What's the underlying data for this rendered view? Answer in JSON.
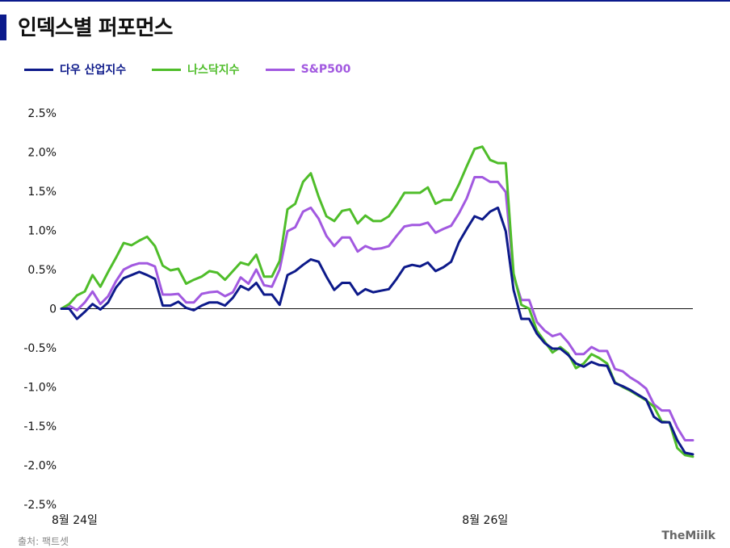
{
  "header": {
    "title": "인덱스별 퍼포먼스"
  },
  "footer": {
    "source": "출처: 팩트셋",
    "brand": "TheMiilk"
  },
  "colors": {
    "accent": "#0b1a8c",
    "dow": "#0d1a8a",
    "nasdaq": "#4fbd2a",
    "sp500": "#a259e0",
    "axis": "#111111"
  },
  "chart_data": {
    "type": "line",
    "title": "인덱스별 퍼포먼스",
    "xlabel": "",
    "ylabel": "",
    "ylim": [
      -2.5,
      2.5
    ],
    "y_ticks": [
      2.5,
      2.0,
      1.5,
      1.0,
      0.5,
      0,
      -0.5,
      -1.0,
      -1.5,
      -2.0,
      -2.5
    ],
    "y_tick_labels": [
      "2.5%",
      "2.0%",
      "1.5%",
      "1.0%",
      "0.5%",
      "0",
      "-0.5%",
      "-1.0%",
      "-1.5%",
      "-2.0%",
      "-2.5%"
    ],
    "x_range": [
      0,
      100
    ],
    "x_ticks": [
      {
        "x": 0,
        "label": "8월 24일"
      },
      {
        "x": 65,
        "label": "8월 26일"
      }
    ],
    "grid": false,
    "legend_position": "top-left",
    "series": [
      {
        "name": "다우 산업지수",
        "color": "#0d1a8a",
        "values": [
          0,
          0,
          -0.13,
          -0.04,
          0.06,
          -0.01,
          0.08,
          0.27,
          0.39,
          0.43,
          0.47,
          0.43,
          0.38,
          0.04,
          0.04,
          0.09,
          0.01,
          -0.02,
          0.04,
          0.08,
          0.08,
          0.04,
          0.14,
          0.29,
          0.24,
          0.33,
          0.18,
          0.18,
          0.05,
          0.43,
          0.48,
          0.56,
          0.63,
          0.6,
          0.41,
          0.24,
          0.33,
          0.33,
          0.18,
          0.25,
          0.21,
          0.23,
          0.25,
          0.38,
          0.53,
          0.56,
          0.54,
          0.59,
          0.48,
          0.53,
          0.6,
          0.85,
          1.02,
          1.18,
          1.14,
          1.24,
          1.29,
          0.99,
          0.24,
          -0.13,
          -0.13,
          -0.32,
          -0.44,
          -0.51,
          -0.51,
          -0.59,
          -0.7,
          -0.74,
          -0.68,
          -0.72,
          -0.73,
          -0.95,
          -0.99,
          -1.04,
          -1.1,
          -1.16,
          -1.38,
          -1.45,
          -1.45,
          -1.68,
          -1.84,
          -1.86
        ]
      },
      {
        "name": "나스닥지수",
        "color": "#4fbd2a",
        "values": [
          0,
          0.06,
          0.17,
          0.22,
          0.43,
          0.28,
          0.47,
          0.65,
          0.84,
          0.81,
          0.87,
          0.92,
          0.8,
          0.55,
          0.49,
          0.51,
          0.32,
          0.37,
          0.41,
          0.48,
          0.46,
          0.37,
          0.48,
          0.59,
          0.56,
          0.69,
          0.41,
          0.41,
          0.61,
          1.27,
          1.34,
          1.62,
          1.73,
          1.43,
          1.18,
          1.12,
          1.25,
          1.27,
          1.09,
          1.19,
          1.12,
          1.12,
          1.18,
          1.32,
          1.48,
          1.48,
          1.48,
          1.55,
          1.34,
          1.39,
          1.39,
          1.59,
          1.82,
          2.04,
          2.07,
          1.9,
          1.86,
          1.86,
          0.45,
          0.05,
          0,
          -0.28,
          -0.42,
          -0.56,
          -0.49,
          -0.57,
          -0.76,
          -0.7,
          -0.58,
          -0.63,
          -0.7,
          -0.94,
          -1,
          -1.05,
          -1.11,
          -1.17,
          -1.25,
          -1.44,
          -1.45,
          -1.78,
          -1.87,
          -1.89
        ]
      },
      {
        "name": "S&P500",
        "color": "#a259e0",
        "values": [
          0,
          0.04,
          -0.02,
          0.08,
          0.22,
          0.06,
          0.16,
          0.35,
          0.5,
          0.55,
          0.58,
          0.58,
          0.54,
          0.18,
          0.18,
          0.19,
          0.08,
          0.08,
          0.19,
          0.21,
          0.22,
          0.16,
          0.21,
          0.4,
          0.32,
          0.5,
          0.3,
          0.28,
          0.5,
          0.99,
          1.04,
          1.24,
          1.29,
          1.15,
          0.93,
          0.8,
          0.91,
          0.91,
          0.73,
          0.8,
          0.76,
          0.77,
          0.8,
          0.93,
          1.05,
          1.07,
          1.07,
          1.1,
          0.97,
          1.02,
          1.06,
          1.22,
          1.41,
          1.68,
          1.68,
          1.62,
          1.62,
          1.49,
          0.42,
          0.11,
          0.11,
          -0.17,
          -0.28,
          -0.35,
          -0.32,
          -0.43,
          -0.58,
          -0.58,
          -0.49,
          -0.54,
          -0.54,
          -0.77,
          -0.8,
          -0.88,
          -0.94,
          -1.02,
          -1.22,
          -1.3,
          -1.3,
          -1.52,
          -1.68,
          -1.68
        ]
      }
    ]
  }
}
